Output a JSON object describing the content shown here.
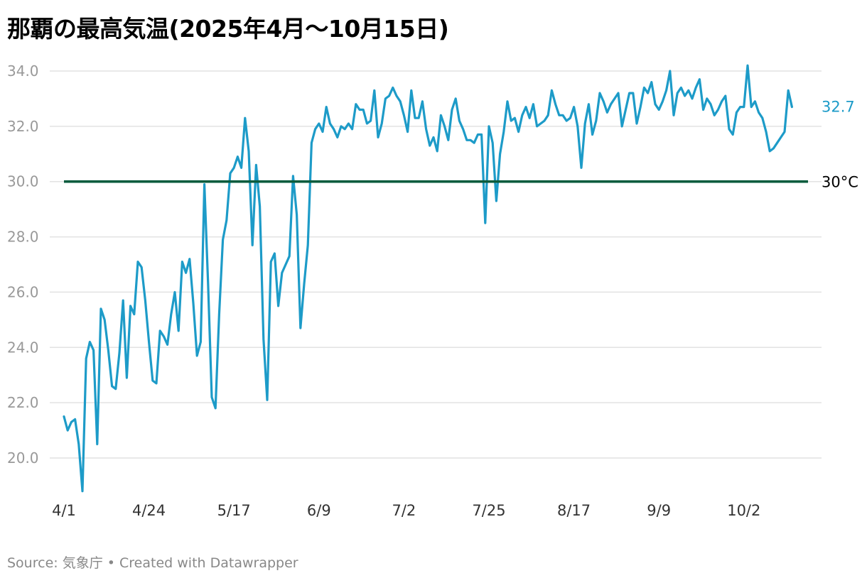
{
  "title": "那覇の最高気温(2025年4月〜10月15日)",
  "footer": {
    "source_label": "Source: ",
    "source": "気象庁",
    "separator": " • ",
    "credit": "Created with Datawrapper"
  },
  "chart_data": {
    "type": "line",
    "title": "那覇の最高気温(2025年4月〜10月15日)",
    "xlabel": "",
    "ylabel": "",
    "x_start": "4/1",
    "x_ticks": [
      "4/1",
      "4/24",
      "5/17",
      "6/9",
      "7/2",
      "7/25",
      "8/17",
      "9/9",
      "10/2"
    ],
    "y_ticks": [
      "20.0",
      "22.0",
      "24.0",
      "26.0",
      "28.0",
      "30.0",
      "32.0",
      "34.0"
    ],
    "ylim": [
      18.7,
      34.5
    ],
    "grid": true,
    "colors": {
      "line": "#1d9bc8",
      "reference": "#0a5c3e",
      "grid": "#e2e2e2"
    },
    "reference_line": {
      "value": 30.0,
      "label": "30°C"
    },
    "end_label": "32.7",
    "series": [
      {
        "values": [
          21.5,
          21.0,
          21.3,
          21.4,
          20.5,
          18.8,
          23.6,
          24.2,
          23.9,
          20.5,
          25.4,
          25.0,
          23.9,
          22.6,
          22.5,
          23.8,
          25.7,
          22.9,
          25.5,
          25.2,
          27.1,
          26.9,
          25.7,
          24.2,
          22.8,
          22.7,
          24.6,
          24.4,
          24.1,
          25.2,
          26.0,
          24.6,
          27.1,
          26.7,
          27.2,
          25.6,
          23.7,
          24.2,
          29.9,
          26.3,
          22.2,
          21.8,
          25.2,
          27.9,
          28.6,
          30.3,
          30.5,
          30.9,
          30.5,
          32.3,
          31.1,
          27.7,
          30.6,
          29.1,
          24.3,
          22.1,
          27.1,
          27.4,
          25.5,
          26.7,
          27.0,
          27.3,
          30.2,
          28.8,
          24.7,
          26.3,
          27.7,
          31.4,
          31.9,
          32.1,
          31.8,
          32.7,
          32.1,
          31.9,
          31.6,
          32.0,
          31.9,
          32.1,
          31.9,
          32.8,
          32.6,
          32.6,
          32.1,
          32.2,
          33.3,
          31.6,
          32.1,
          33.0,
          33.1,
          33.4,
          33.1,
          32.9,
          32.4,
          31.8,
          33.3,
          32.3,
          32.3,
          32.9,
          31.9,
          31.3,
          31.6,
          31.1,
          32.4,
          32.0,
          31.5,
          32.6,
          33.0,
          32.2,
          31.9,
          31.5,
          31.5,
          31.4,
          31.7,
          31.7,
          28.5,
          32.0,
          31.4,
          29.3,
          31.0,
          31.8,
          32.9,
          32.2,
          32.3,
          31.8,
          32.4,
          32.7,
          32.3,
          32.8,
          32.0,
          32.1,
          32.2,
          32.4,
          33.3,
          32.8,
          32.4,
          32.4,
          32.2,
          32.3,
          32.7,
          32.0,
          30.5,
          32.1,
          32.8,
          31.7,
          32.2,
          33.2,
          32.9,
          32.5,
          32.8,
          33.0,
          33.2,
          32.0,
          32.6,
          33.2,
          33.2,
          32.1,
          32.7,
          33.4,
          33.2,
          33.6,
          32.8,
          32.6,
          32.9,
          33.3,
          34.0,
          32.4,
          33.2,
          33.4,
          33.1,
          33.3,
          33.0,
          33.4,
          33.7,
          32.6,
          33.0,
          32.8,
          32.4,
          32.6,
          32.9,
          33.1,
          31.9,
          31.7,
          32.5,
          32.7,
          32.7,
          34.2,
          32.7,
          32.9,
          32.5,
          32.3,
          31.8,
          31.1,
          31.2,
          31.4,
          31.6,
          31.8,
          33.3,
          32.7
        ]
      }
    ]
  }
}
